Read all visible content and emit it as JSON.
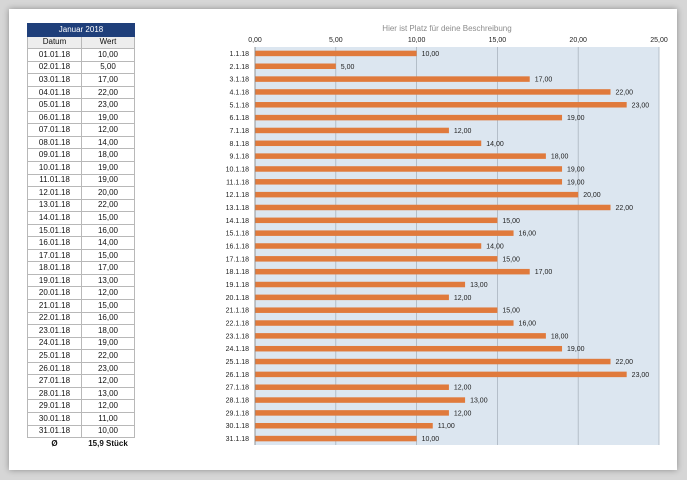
{
  "table": {
    "title": "Januar 2018",
    "headers": {
      "date": "Datum",
      "value": "Wert"
    },
    "rows": [
      {
        "date": "01.01.18",
        "value": "10,00"
      },
      {
        "date": "02.01.18",
        "value": "5,00"
      },
      {
        "date": "03.01.18",
        "value": "17,00"
      },
      {
        "date": "04.01.18",
        "value": "22,00"
      },
      {
        "date": "05.01.18",
        "value": "23,00"
      },
      {
        "date": "06.01.18",
        "value": "19,00"
      },
      {
        "date": "07.01.18",
        "value": "12,00"
      },
      {
        "date": "08.01.18",
        "value": "14,00"
      },
      {
        "date": "09.01.18",
        "value": "18,00"
      },
      {
        "date": "10.01.18",
        "value": "19,00"
      },
      {
        "date": "11.01.18",
        "value": "19,00"
      },
      {
        "date": "12.01.18",
        "value": "20,00"
      },
      {
        "date": "13.01.18",
        "value": "22,00"
      },
      {
        "date": "14.01.18",
        "value": "15,00"
      },
      {
        "date": "15.01.18",
        "value": "16,00"
      },
      {
        "date": "16.01.18",
        "value": "14,00"
      },
      {
        "date": "17.01.18",
        "value": "15,00"
      },
      {
        "date": "18.01.18",
        "value": "17,00"
      },
      {
        "date": "19.01.18",
        "value": "13,00"
      },
      {
        "date": "20.01.18",
        "value": "12,00"
      },
      {
        "date": "21.01.18",
        "value": "15,00"
      },
      {
        "date": "22.01.18",
        "value": "16,00"
      },
      {
        "date": "23.01.18",
        "value": "18,00"
      },
      {
        "date": "24.01.18",
        "value": "19,00"
      },
      {
        "date": "25.01.18",
        "value": "22,00"
      },
      {
        "date": "26.01.18",
        "value": "23,00"
      },
      {
        "date": "27.01.18",
        "value": "12,00"
      },
      {
        "date": "28.01.18",
        "value": "13,00"
      },
      {
        "date": "29.01.18",
        "value": "12,00"
      },
      {
        "date": "30.01.18",
        "value": "11,00"
      },
      {
        "date": "31.01.18",
        "value": "10,00"
      }
    ],
    "footer": {
      "symbol": "Ø",
      "value": "15,9 Stück"
    }
  },
  "chart_data": {
    "type": "bar",
    "orientation": "horizontal",
    "title": "Hier ist Platz für deine Beschreibung",
    "categories": [
      "1.1.18",
      "2.1.18",
      "3.1.18",
      "4.1.18",
      "5.1.18",
      "6.1.18",
      "7.1.18",
      "8.1.18",
      "9.1.18",
      "10.1.18",
      "11.1.18",
      "12.1.18",
      "13.1.18",
      "14.1.18",
      "15.1.18",
      "16.1.18",
      "17.1.18",
      "18.1.18",
      "19.1.18",
      "20.1.18",
      "21.1.18",
      "22.1.18",
      "23.1.18",
      "24.1.18",
      "25.1.18",
      "26.1.18",
      "27.1.18",
      "28.1.18",
      "29.1.18",
      "30.1.18",
      "31.1.18"
    ],
    "values": [
      10,
      5,
      17,
      22,
      23,
      19,
      12,
      14,
      18,
      19,
      19,
      20,
      22,
      15,
      16,
      14,
      15,
      17,
      13,
      12,
      15,
      16,
      18,
      19,
      22,
      23,
      12,
      13,
      12,
      11,
      10
    ],
    "data_labels": [
      "10,00",
      "5,00",
      "17,00",
      "22,00",
      "23,00",
      "19,00",
      "12,00",
      "14,00",
      "18,00",
      "19,00",
      "19,00",
      "20,00",
      "22,00",
      "15,00",
      "16,00",
      "14,00",
      "15,00",
      "17,00",
      "13,00",
      "12,00",
      "15,00",
      "16,00",
      "18,00",
      "19,00",
      "22,00",
      "23,00",
      "12,00",
      "13,00",
      "12,00",
      "11,00",
      "10,00"
    ],
    "xlim": [
      0,
      25
    ],
    "x_ticks": [
      0,
      5,
      10,
      15,
      20,
      25
    ],
    "x_tick_labels": [
      "0,00",
      "5,00",
      "10,00",
      "15,00",
      "20,00",
      "25,00"
    ],
    "axis_position": "top",
    "grid": true,
    "colors": {
      "bar": "#e07a3c",
      "plot_background": "#dce6f0",
      "gridline": "#a9b4bf",
      "title": "#8c8c8c"
    }
  }
}
